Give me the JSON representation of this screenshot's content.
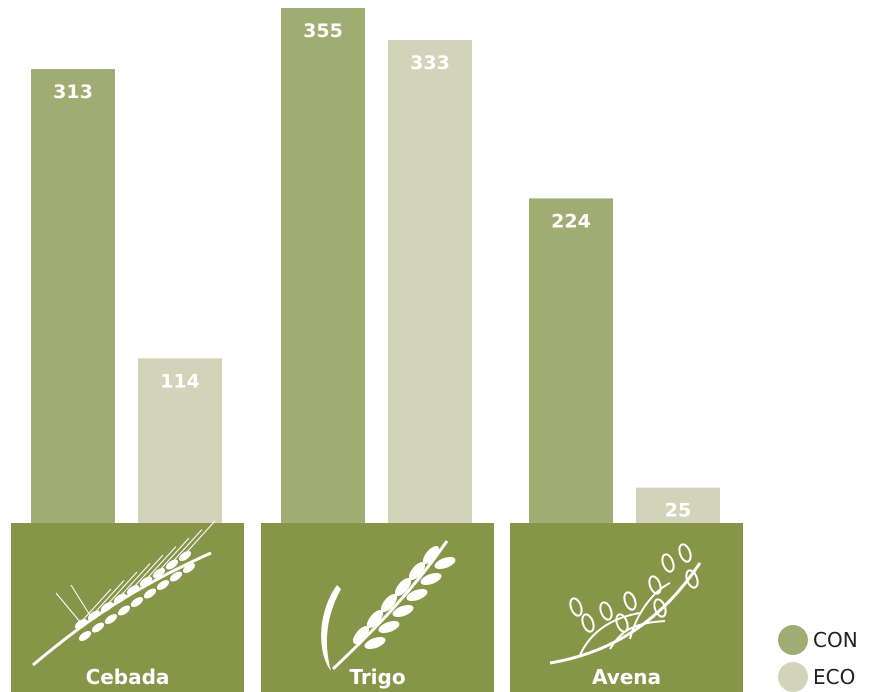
{
  "chart_data": {
    "type": "bar",
    "categories": [
      "Cebada",
      "Trigo",
      "Avena"
    ],
    "series": [
      {
        "name": "CON",
        "values": [
          313,
          355,
          224
        ],
        "color": "#a1ac72"
      },
      {
        "name": "ECO",
        "values": [
          114,
          333,
          25
        ],
        "color": "#d2d4b9"
      }
    ],
    "category_icons": [
      "barley-icon",
      "wheat-icon",
      "oat-icon"
    ],
    "category_box_color": "#879549",
    "ylim": [
      0,
      360
    ],
    "grid": false,
    "legend_position": "bottom-right"
  }
}
